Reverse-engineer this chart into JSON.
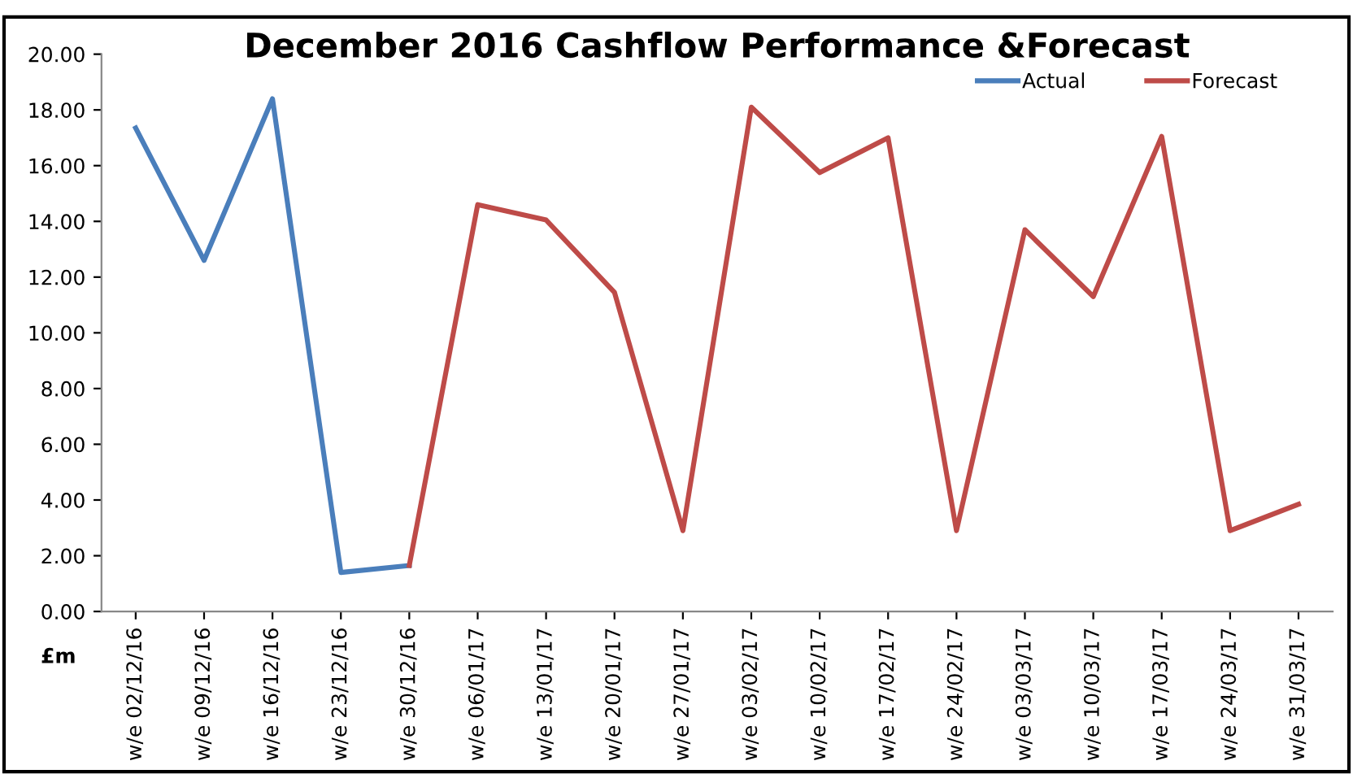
{
  "chart_data": {
    "type": "line",
    "title": "December 2016 Cashflow Performance &Forecast",
    "ylabel": "£m",
    "categories": [
      "w/e 02/12/16",
      "w/e 09/12/16",
      "w/e 16/12/16",
      "w/e 23/12/16",
      "w/e 30/12/16",
      "w/e 06/01/17",
      "w/e 13/01/17",
      "w/e 20/01/17",
      "w/e 27/01/17",
      "w/e 03/02/17",
      "w/e 10/02/17",
      "w/e 17/02/17",
      "w/e 24/02/17",
      "w/e 03/03/17",
      "w/e 10/03/17",
      "w/e 17/03/17",
      "w/e 24/03/17",
      "w/e 31/03/17"
    ],
    "series": [
      {
        "name": "Actual",
        "color": "#4a7ebb",
        "values": [
          17.35,
          12.6,
          18.4,
          1.4,
          1.65,
          null,
          null,
          null,
          null,
          null,
          null,
          null,
          null,
          null,
          null,
          null,
          null,
          null
        ]
      },
      {
        "name": "Forecast",
        "color": "#be4b48",
        "values": [
          null,
          null,
          null,
          null,
          1.65,
          14.6,
          14.05,
          11.45,
          2.9,
          18.1,
          15.75,
          17.0,
          2.9,
          13.7,
          11.3,
          17.05,
          2.9,
          3.85
        ]
      }
    ],
    "ylim": [
      0,
      20
    ],
    "yticks": [
      {
        "value": 0,
        "label": "0.00"
      },
      {
        "value": 2,
        "label": "2.00"
      },
      {
        "value": 4,
        "label": "4.00"
      },
      {
        "value": 6,
        "label": "6.00"
      },
      {
        "value": 8,
        "label": "8.00"
      },
      {
        "value": 10,
        "label": "10.00"
      },
      {
        "value": 12,
        "label": "12.00"
      },
      {
        "value": 14,
        "label": "14.00"
      },
      {
        "value": 16,
        "label": "16.00"
      },
      {
        "value": 18,
        "label": "18.00"
      },
      {
        "value": 20,
        "label": "20.00"
      }
    ],
    "grid": false,
    "legend": "top right",
    "marker": "none",
    "line_style": "solid"
  }
}
